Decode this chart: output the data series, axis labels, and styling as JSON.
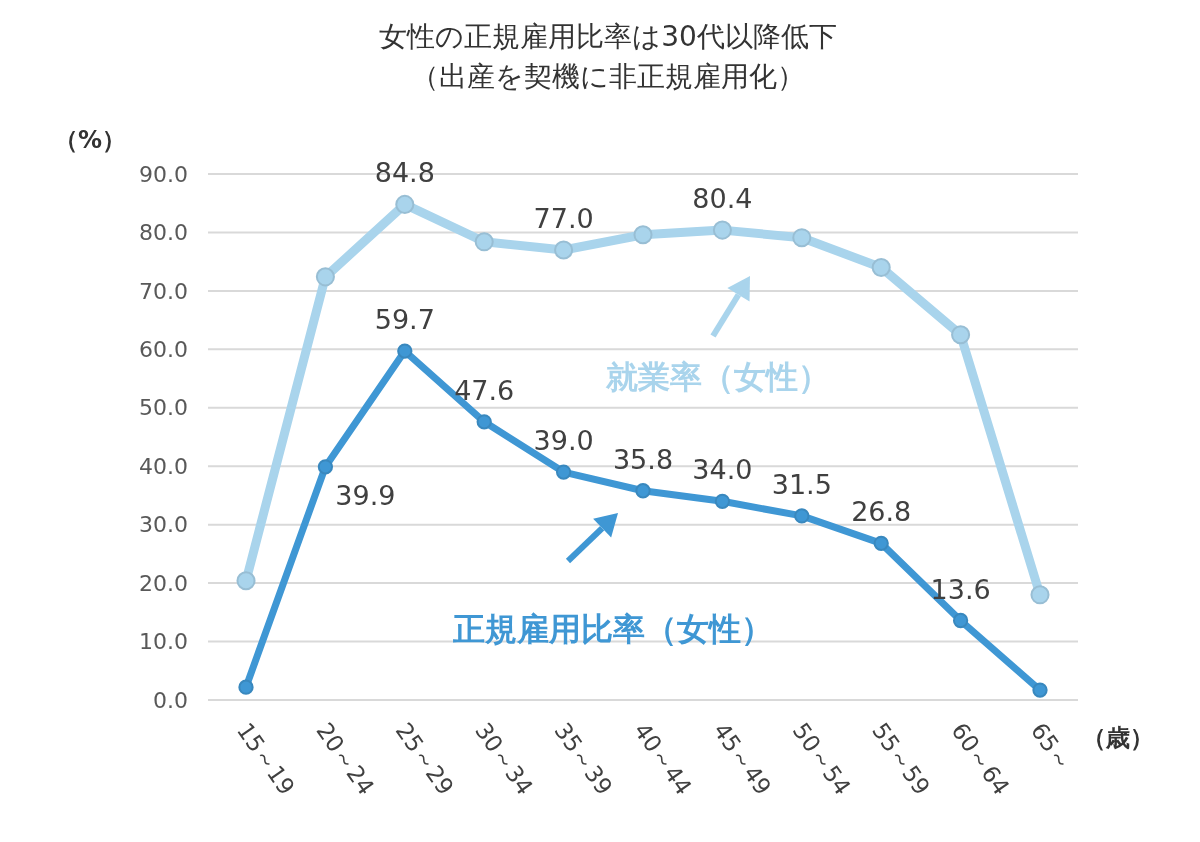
{
  "chart_data": {
    "type": "line",
    "title": "女性の正規雇用比率は30代以降低下",
    "subtitle": "（出産を契機に非正規雇用化）",
    "ylabel": "（%）",
    "xlabel": "（歳）",
    "categories": [
      "15～19",
      "20～24",
      "25～29",
      "30～34",
      "35～39",
      "40～44",
      "45～49",
      "50～54",
      "55～59",
      "60～64",
      "65～"
    ],
    "series": [
      {
        "name": "就業率（女性）",
        "color": "#a9d4ec",
        "values": [
          20.4,
          72.4,
          84.8,
          78.4,
          77.0,
          79.6,
          80.4,
          79.1,
          74.0,
          62.5,
          18.0
        ],
        "value_labels": [
          null,
          null,
          "84.8",
          null,
          "77.0",
          null,
          "80.4",
          null,
          null,
          null,
          null
        ]
      },
      {
        "name": "正規雇用比率（女性）",
        "color": "#3f97d4",
        "values": [
          2.2,
          39.9,
          59.7,
          47.6,
          39.0,
          35.8,
          34.0,
          31.5,
          26.8,
          13.6,
          1.7
        ],
        "value_labels": [
          null,
          "39.9",
          "59.7",
          "47.6",
          "39.0",
          "35.8",
          "34.0",
          "31.5",
          "26.8",
          "13.6",
          null
        ]
      }
    ],
    "ylim": [
      0,
      90
    ],
    "yticks": [
      {
        "value": 0,
        "label": "0.0"
      },
      {
        "value": 10,
        "label": "10.0"
      },
      {
        "value": 20,
        "label": "20.0"
      },
      {
        "value": 30,
        "label": "30.0"
      },
      {
        "value": 40,
        "label": "40.0"
      },
      {
        "value": 50,
        "label": "50.0"
      },
      {
        "value": 60,
        "label": "60.0"
      },
      {
        "value": 70,
        "label": "70.0"
      },
      {
        "value": 80,
        "label": "80.0"
      },
      {
        "value": 90,
        "label": "90.0"
      }
    ],
    "grid": "y",
    "legend": "center",
    "marker": "circle",
    "line_style": "solid"
  }
}
